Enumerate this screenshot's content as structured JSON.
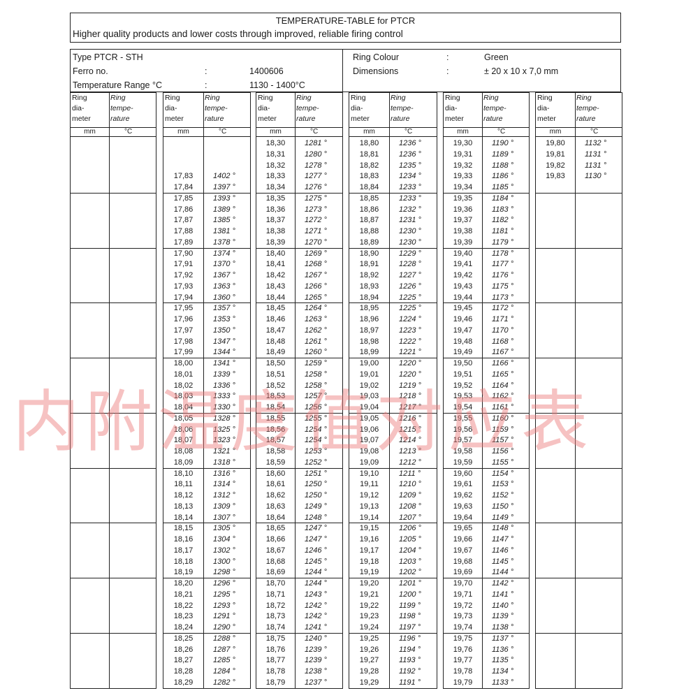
{
  "header": {
    "title": "TEMPERATURE-TABLE for PTCR",
    "subtitle": "Higher quality products and lower costs through improved, reliable firing control"
  },
  "info": {
    "type": "Type PTCR - STH",
    "ferro_label": "Ferro no.",
    "ferro_value": "1400606",
    "range_label": "Temperature Range °C",
    "range_value": "1130 - 1400°C",
    "colon": ":",
    "colour_label": "Ring Colour",
    "colour_value": "Green",
    "dim_label": "Dimensions",
    "dim_value": "± 20 x 10 x 7,0 mm"
  },
  "column_header": {
    "diameter": "Ring\ndia-\nmeter",
    "temperature": "Ring\ntempe-\nrature",
    "diameter_unit": "mm",
    "temperature_unit": "°C"
  },
  "columns": [
    {
      "rows": []
    },
    {
      "rows": [
        null,
        null,
        null,
        [
          "17,83",
          "1402 °"
        ],
        [
          "17,84",
          "1397 °"
        ],
        [
          "17,85",
          "1393 °"
        ],
        [
          "17,86",
          "1389 °"
        ],
        [
          "17,87",
          "1385 °"
        ],
        [
          "17,88",
          "1381 °"
        ],
        [
          "17,89",
          "1378 °"
        ],
        [
          "17,90",
          "1374 °"
        ],
        [
          "17,91",
          "1370 °"
        ],
        [
          "17,92",
          "1367 °"
        ],
        [
          "17,93",
          "1363 °"
        ],
        [
          "17,94",
          "1360 °"
        ],
        [
          "17,95",
          "1357 °"
        ],
        [
          "17,96",
          "1353 °"
        ],
        [
          "17,97",
          "1350 °"
        ],
        [
          "17,98",
          "1347 °"
        ],
        [
          "17,99",
          "1344 °"
        ],
        [
          "18,00",
          "1341 °"
        ],
        [
          "18,01",
          "1339 °"
        ],
        [
          "18,02",
          "1336 °"
        ],
        [
          "18,03",
          "1333 °"
        ],
        [
          "18,04",
          "1330 °"
        ],
        [
          "18,05",
          "1328 °"
        ],
        [
          "18,06",
          "1325 °"
        ],
        [
          "18,07",
          "1323 °"
        ],
        [
          "18,08",
          "1321 °"
        ],
        [
          "18,09",
          "1318 °"
        ],
        [
          "18,10",
          "1316 °"
        ],
        [
          "18,11",
          "1314 °"
        ],
        [
          "18,12",
          "1312 °"
        ],
        [
          "18,13",
          "1309 °"
        ],
        [
          "18,14",
          "1307 °"
        ],
        [
          "18,15",
          "1305 °"
        ],
        [
          "18,16",
          "1304 °"
        ],
        [
          "18,17",
          "1302 °"
        ],
        [
          "18,18",
          "1300 °"
        ],
        [
          "18,19",
          "1298 °"
        ],
        [
          "18,20",
          "1296 °"
        ],
        [
          "18,21",
          "1295 °"
        ],
        [
          "18,22",
          "1293 °"
        ],
        [
          "18,23",
          "1291 °"
        ],
        [
          "18,24",
          "1290 °"
        ],
        [
          "18,25",
          "1288 °"
        ],
        [
          "18,26",
          "1287 °"
        ],
        [
          "18,27",
          "1285 °"
        ],
        [
          "18,28",
          "1284 °"
        ],
        [
          "18,29",
          "1282 °"
        ]
      ]
    },
    {
      "rows": [
        [
          "18,30",
          "1281 °"
        ],
        [
          "18,31",
          "1280 °"
        ],
        [
          "18,32",
          "1278 °"
        ],
        [
          "18,33",
          "1277 °"
        ],
        [
          "18,34",
          "1276 °"
        ],
        [
          "18,35",
          "1275 °"
        ],
        [
          "18,36",
          "1273 °"
        ],
        [
          "18,37",
          "1272 °"
        ],
        [
          "18,38",
          "1271 °"
        ],
        [
          "18,39",
          "1270 °"
        ],
        [
          "18,40",
          "1269 °"
        ],
        [
          "18,41",
          "1268 °"
        ],
        [
          "18,42",
          "1267 °"
        ],
        [
          "18,43",
          "1266 °"
        ],
        [
          "18,44",
          "1265 °"
        ],
        [
          "18,45",
          "1264 °"
        ],
        [
          "18,46",
          "1263 °"
        ],
        [
          "18,47",
          "1262 °"
        ],
        [
          "18,48",
          "1261 °"
        ],
        [
          "18,49",
          "1260 °"
        ],
        [
          "18,50",
          "1259 °"
        ],
        [
          "18,51",
          "1258 °"
        ],
        [
          "18,52",
          "1258 °"
        ],
        [
          "18,53",
          "1257 °"
        ],
        [
          "18,54",
          "1256 °"
        ],
        [
          "18,55",
          "1255 °"
        ],
        [
          "18,56",
          "1254 °"
        ],
        [
          "18,57",
          "1254 °"
        ],
        [
          "18,58",
          "1253 °"
        ],
        [
          "18,59",
          "1252 °"
        ],
        [
          "18,60",
          "1251 °"
        ],
        [
          "18,61",
          "1250 °"
        ],
        [
          "18,62",
          "1250 °"
        ],
        [
          "18,63",
          "1249 °"
        ],
        [
          "18,64",
          "1248 °"
        ],
        [
          "18,65",
          "1247 °"
        ],
        [
          "18,66",
          "1247 °"
        ],
        [
          "18,67",
          "1246 °"
        ],
        [
          "18,68",
          "1245 °"
        ],
        [
          "18,69",
          "1244 °"
        ],
        [
          "18,70",
          "1244 °"
        ],
        [
          "18,71",
          "1243 °"
        ],
        [
          "18,72",
          "1242 °"
        ],
        [
          "18,73",
          "1242 °"
        ],
        [
          "18,74",
          "1241 °"
        ],
        [
          "18,75",
          "1240 °"
        ],
        [
          "18,76",
          "1239 °"
        ],
        [
          "18,77",
          "1239 °"
        ],
        [
          "18,78",
          "1238 °"
        ],
        [
          "18,79",
          "1237 °"
        ]
      ]
    },
    {
      "rows": [
        [
          "18,80",
          "1236 °"
        ],
        [
          "18,81",
          "1236 °"
        ],
        [
          "18,82",
          "1235 °"
        ],
        [
          "18,83",
          "1234 °"
        ],
        [
          "18,84",
          "1233 °"
        ],
        [
          "18,85",
          "1233 °"
        ],
        [
          "18,86",
          "1232 °"
        ],
        [
          "18,87",
          "1231 °"
        ],
        [
          "18,88",
          "1230 °"
        ],
        [
          "18,89",
          "1230 °"
        ],
        [
          "18,90",
          "1229 °"
        ],
        [
          "18,91",
          "1228 °"
        ],
        [
          "18,92",
          "1227 °"
        ],
        [
          "18,93",
          "1226 °"
        ],
        [
          "18,94",
          "1225 °"
        ],
        [
          "18,95",
          "1225 °"
        ],
        [
          "18,96",
          "1224 °"
        ],
        [
          "18,97",
          "1223 °"
        ],
        [
          "18,98",
          "1222 °"
        ],
        [
          "18,99",
          "1221 °"
        ],
        [
          "19,00",
          "1220 °"
        ],
        [
          "19,01",
          "1220 °"
        ],
        [
          "19,02",
          "1219 °"
        ],
        [
          "19,03",
          "1218 °"
        ],
        [
          "19,04",
          "1217 °"
        ],
        [
          "19,05",
          "1216 °"
        ],
        [
          "19,06",
          "1215 °"
        ],
        [
          "19,07",
          "1214 °"
        ],
        [
          "19,08",
          "1213 °"
        ],
        [
          "19,09",
          "1212 °"
        ],
        [
          "19,10",
          "1211 °"
        ],
        [
          "19,11",
          "1210 °"
        ],
        [
          "19,12",
          "1209 °"
        ],
        [
          "19,13",
          "1208 °"
        ],
        [
          "19,14",
          "1207 °"
        ],
        [
          "19,15",
          "1206 °"
        ],
        [
          "19,16",
          "1205 °"
        ],
        [
          "19,17",
          "1204 °"
        ],
        [
          "19,18",
          "1203 °"
        ],
        [
          "19,19",
          "1202 °"
        ],
        [
          "19,20",
          "1201 °"
        ],
        [
          "19,21",
          "1200 °"
        ],
        [
          "19,22",
          "1199 °"
        ],
        [
          "19,23",
          "1198 °"
        ],
        [
          "19,24",
          "1197 °"
        ],
        [
          "19,25",
          "1196 °"
        ],
        [
          "19,26",
          "1194 °"
        ],
        [
          "19,27",
          "1193 °"
        ],
        [
          "19,28",
          "1192 °"
        ],
        [
          "19,29",
          "1191 °"
        ]
      ]
    },
    {
      "rows": [
        [
          "19,30",
          "1190 °"
        ],
        [
          "19,31",
          "1189 °"
        ],
        [
          "19,32",
          "1188 °"
        ],
        [
          "19,33",
          "1186 °"
        ],
        [
          "19,34",
          "1185 °"
        ],
        [
          "19,35",
          "1184 °"
        ],
        [
          "19,36",
          "1183 °"
        ],
        [
          "19,37",
          "1182 °"
        ],
        [
          "19,38",
          "1181 °"
        ],
        [
          "19,39",
          "1179 °"
        ],
        [
          "19,40",
          "1178 °"
        ],
        [
          "19,41",
          "1177 °"
        ],
        [
          "19,42",
          "1176 °"
        ],
        [
          "19,43",
          "1175 °"
        ],
        [
          "19,44",
          "1173 °"
        ],
        [
          "19,45",
          "1172 °"
        ],
        [
          "19,46",
          "1171 °"
        ],
        [
          "19,47",
          "1170 °"
        ],
        [
          "19,48",
          "1168 °"
        ],
        [
          "19,49",
          "1167 °"
        ],
        [
          "19,50",
          "1166 °"
        ],
        [
          "19,51",
          "1165 °"
        ],
        [
          "19,52",
          "1164 °"
        ],
        [
          "19,53",
          "1162 °"
        ],
        [
          "19,54",
          "1161 °"
        ],
        [
          "19,55",
          "1160 °"
        ],
        [
          "19,56",
          "1159 °"
        ],
        [
          "19,57",
          "1157 °"
        ],
        [
          "19,58",
          "1156 °"
        ],
        [
          "19,59",
          "1155 °"
        ],
        [
          "19,60",
          "1154 °"
        ],
        [
          "19,61",
          "1153 °"
        ],
        [
          "19,62",
          "1152 °"
        ],
        [
          "19,63",
          "1150 °"
        ],
        [
          "19,64",
          "1149 °"
        ],
        [
          "19,65",
          "1148 °"
        ],
        [
          "19,66",
          "1147 °"
        ],
        [
          "19,67",
          "1146 °"
        ],
        [
          "19,68",
          "1145 °"
        ],
        [
          "19,69",
          "1144 °"
        ],
        [
          "19,70",
          "1142 °"
        ],
        [
          "19,71",
          "1141 °"
        ],
        [
          "19,72",
          "1140 °"
        ],
        [
          "19,73",
          "1139 °"
        ],
        [
          "19,74",
          "1138 °"
        ],
        [
          "19,75",
          "1137 °"
        ],
        [
          "19,76",
          "1136 °"
        ],
        [
          "19,77",
          "1135 °"
        ],
        [
          "19,78",
          "1134 °"
        ],
        [
          "19,79",
          "1133 °"
        ]
      ]
    },
    {
      "rows": [
        [
          "19,80",
          "1132 °"
        ],
        [
          "19,81",
          "1131 °"
        ],
        [
          "19,82",
          "1131 °"
        ],
        [
          "19,83",
          "1130 °"
        ]
      ]
    }
  ],
  "watermark": "内附温度值对应表"
}
